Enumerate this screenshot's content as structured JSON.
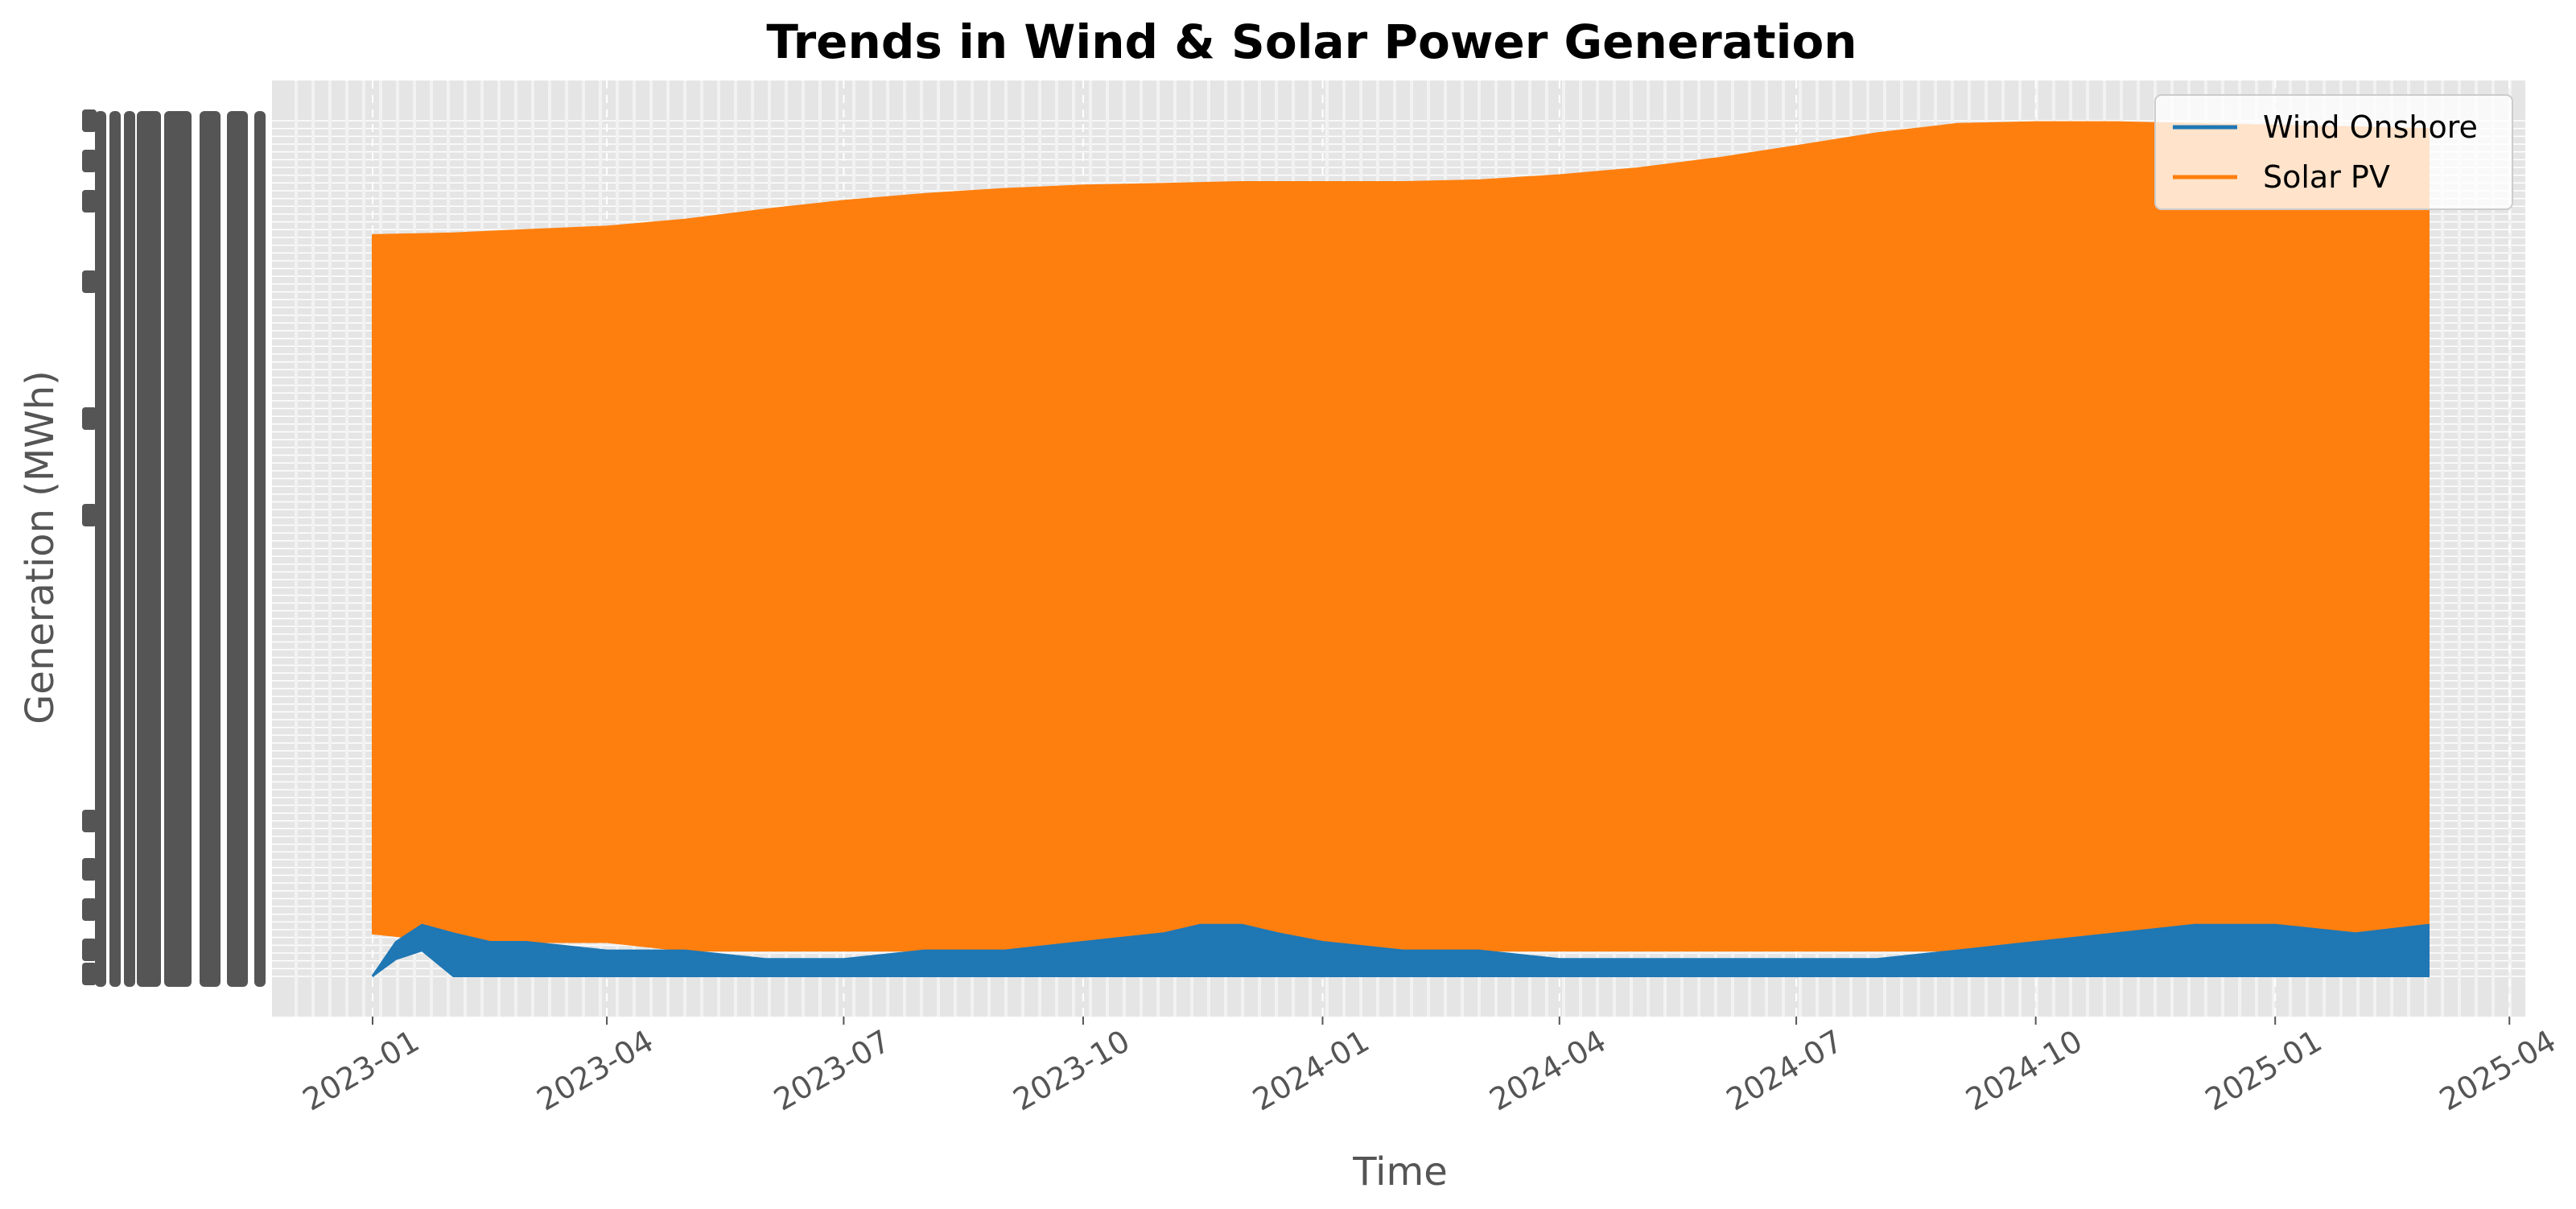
{
  "chart_data": {
    "type": "line",
    "title": "Trends in Wind & Solar Power Generation",
    "xlabel": "Time",
    "ylabel": "Generation (MWh)",
    "x_type": "date",
    "xlim": [
      "2022-11-20",
      "2025-04-12"
    ],
    "x_ticks": [
      "2023-01",
      "2023-04",
      "2023-07",
      "2023-10",
      "2024-01",
      "2024-04",
      "2024-07",
      "2024-10",
      "2025-01",
      "2025-04"
    ],
    "y_ticks": "overlapping, illegible",
    "grid": true,
    "legend": "top-right",
    "series": [
      {
        "name": "Wind Onshore",
        "color": "#1f77b4",
        "x": [
          "2023-01-01",
          "2023-01-10",
          "2023-01-20",
          "2023-02-01",
          "2023-02-15",
          "2023-03-01",
          "2023-04-01",
          "2023-05-01",
          "2023-06-01",
          "2023-07-01",
          "2023-08-01",
          "2023-09-01",
          "2023-10-01",
          "2023-11-01",
          "2023-11-15",
          "2023-12-01",
          "2023-12-15",
          "2024-01-01",
          "2024-02-01",
          "2024-03-01",
          "2024-04-01",
          "2024-05-01",
          "2024-06-01",
          "2024-07-01",
          "2024-08-01",
          "2024-09-01",
          "2024-10-01",
          "2024-11-01",
          "2024-12-01",
          "2025-01-01",
          "2025-02-01",
          "2025-03-01"
        ],
        "low": [
          0.0,
          0.02,
          0.03,
          0.0,
          0.0,
          0.0,
          0.0,
          0.0,
          0.0,
          0.0,
          0.0,
          0.0,
          0.0,
          0.0,
          0.0,
          0.0,
          0.0,
          0.0,
          0.0,
          0.0,
          0.0,
          0.0,
          0.0,
          0.0,
          0.0,
          0.0,
          0.0,
          0.0,
          0.0,
          0.0,
          0.0,
          0.0
        ],
        "high": [
          0.0,
          0.04,
          0.06,
          0.05,
          0.04,
          0.04,
          0.03,
          0.03,
          0.02,
          0.02,
          0.03,
          0.03,
          0.04,
          0.05,
          0.06,
          0.06,
          0.05,
          0.04,
          0.03,
          0.03,
          0.02,
          0.02,
          0.02,
          0.02,
          0.02,
          0.03,
          0.04,
          0.05,
          0.06,
          0.06,
          0.05,
          0.06
        ]
      },
      {
        "name": "Solar PV",
        "color": "#ff7f0e",
        "x": [
          "2023-01-01",
          "2023-02-01",
          "2023-03-01",
          "2023-04-01",
          "2023-05-01",
          "2023-06-01",
          "2023-07-01",
          "2023-08-01",
          "2023-09-01",
          "2023-10-01",
          "2023-11-01",
          "2023-12-01",
          "2024-01-01",
          "2024-02-01",
          "2024-03-01",
          "2024-04-01",
          "2024-05-01",
          "2024-06-01",
          "2024-07-01",
          "2024-08-01",
          "2024-09-01",
          "2024-10-01",
          "2024-11-01",
          "2024-12-01",
          "2025-01-01",
          "2025-02-01",
          "2025-03-01"
        ],
        "low": [
          0.05,
          0.04,
          0.04,
          0.04,
          0.03,
          0.03,
          0.03,
          0.03,
          0.03,
          0.03,
          0.03,
          0.03,
          0.03,
          0.03,
          0.03,
          0.03,
          0.03,
          0.03,
          0.03,
          0.03,
          0.03,
          0.03,
          0.03,
          0.03,
          0.03,
          0.03,
          0.03
        ],
        "high": [
          0.866,
          0.868,
          0.872,
          0.876,
          0.884,
          0.896,
          0.906,
          0.914,
          0.92,
          0.924,
          0.926,
          0.928,
          0.928,
          0.928,
          0.93,
          0.936,
          0.944,
          0.956,
          0.97,
          0.985,
          0.996,
          0.998,
          0.998,
          0.996,
          0.994,
          0.992,
          0.99
        ]
      }
    ]
  }
}
